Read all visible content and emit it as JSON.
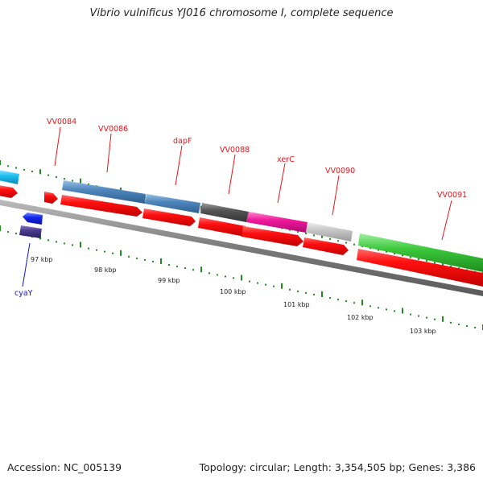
{
  "title": "Vibrio vulnificus YJ016 chromosome I, complete sequence",
  "accession": "Accession: NC_005139",
  "summary": "Topology: circular; Length: 3,354,505 bp; Genes: 3,386",
  "scale_labels": [
    "97 kbp",
    "98 kbp",
    "99 kbp",
    "100 kbp",
    "101 kbp",
    "102 kbp",
    "103 kbp"
  ],
  "gene_labels": [
    {
      "text": "VV0084",
      "color": "#e8141b"
    },
    {
      "text": "VV0086",
      "color": "#e8141b"
    },
    {
      "text": "dapF",
      "color": "#e8141b"
    },
    {
      "text": "VV0088",
      "color": "#e8141b"
    },
    {
      "text": "xerC",
      "color": "#e8141b"
    },
    {
      "text": "VV0090",
      "color": "#e8141b"
    },
    {
      "text": "VV0091",
      "color": "#e8141b"
    },
    {
      "text": "cyaY",
      "color": "#1414d2"
    }
  ],
  "colors": {
    "backbone": "#8a8a8a",
    "gene_cds": "#ff0f0f",
    "tick": "#1e8c1e",
    "steelblue": "#4f87bd",
    "darkgray": "#555555",
    "magenta": "#f0189c",
    "lightgray": "#c8c8c8",
    "green": "#3cc83c",
    "cyan": "#1fc0f0",
    "blue": "#1428f0",
    "purple": "#4a3c8c"
  }
}
